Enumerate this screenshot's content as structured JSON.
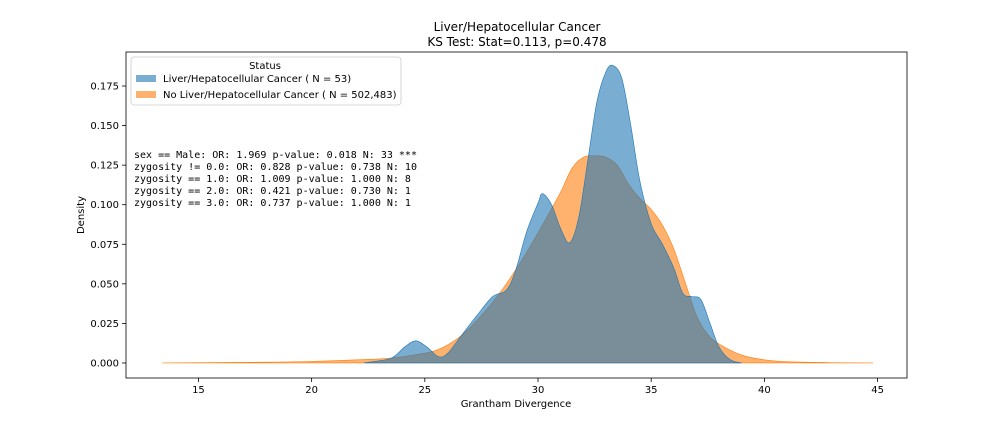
{
  "chart_data": {
    "type": "area",
    "title": "Liver/Hepatocellular Cancer",
    "subtitle": "KS Test: Stat=0.113, p=0.478",
    "xlabel": "Grantham Divergence",
    "ylabel": "Density",
    "xlim": [
      11.8,
      46.3
    ],
    "ylim": [
      -0.0095,
      0.1965
    ],
    "xticks": [
      15,
      20,
      25,
      30,
      35,
      40,
      45
    ],
    "yticks": [
      0.0,
      0.025,
      0.05,
      0.075,
      0.1,
      0.125,
      0.15,
      0.175
    ],
    "xtick_labels": [
      "15",
      "20",
      "25",
      "30",
      "35",
      "40",
      "45"
    ],
    "ytick_labels": [
      "0.000",
      "0.025",
      "0.050",
      "0.075",
      "0.100",
      "0.125",
      "0.150",
      "0.175"
    ],
    "grid": false,
    "legend": {
      "title": "Status",
      "placement": "top-left"
    },
    "series": [
      {
        "name": "No Liver/Hepatocellular Cancer ( N = 502,483)",
        "color": "#ff7f0e",
        "points": [
          [
            13.4,
            0.0
          ],
          [
            18.0,
            0.0005
          ],
          [
            20.0,
            0.001
          ],
          [
            22.0,
            0.002
          ],
          [
            23.5,
            0.003
          ],
          [
            24.5,
            0.005
          ],
          [
            25.5,
            0.008
          ],
          [
            26.5,
            0.016
          ],
          [
            27.5,
            0.03
          ],
          [
            28.5,
            0.048
          ],
          [
            29.5,
            0.07
          ],
          [
            30.5,
            0.095
          ],
          [
            31.0,
            0.108
          ],
          [
            31.5,
            0.123
          ],
          [
            32.0,
            0.13
          ],
          [
            32.5,
            0.131
          ],
          [
            33.0,
            0.13
          ],
          [
            33.5,
            0.125
          ],
          [
            34.0,
            0.113
          ],
          [
            34.5,
            0.104
          ],
          [
            35.0,
            0.097
          ],
          [
            35.5,
            0.087
          ],
          [
            36.0,
            0.072
          ],
          [
            36.5,
            0.051
          ],
          [
            37.0,
            0.03
          ],
          [
            37.5,
            0.018
          ],
          [
            38.0,
            0.012
          ],
          [
            39.0,
            0.005
          ],
          [
            40.0,
            0.002
          ],
          [
            41.0,
            0.0008
          ],
          [
            43.0,
            0.0002
          ],
          [
            44.8,
            0.0
          ]
        ]
      },
      {
        "name": "Liver/Hepatocellular Cancer ( N = 53)",
        "color": "#1f77b4",
        "points": [
          [
            22.3,
            0.0
          ],
          [
            23.5,
            0.003
          ],
          [
            24.1,
            0.01
          ],
          [
            24.6,
            0.014
          ],
          [
            25.1,
            0.01
          ],
          [
            25.6,
            0.004
          ],
          [
            26.0,
            0.006
          ],
          [
            26.6,
            0.017
          ],
          [
            27.3,
            0.03
          ],
          [
            28.0,
            0.042
          ],
          [
            28.6,
            0.046
          ],
          [
            29.0,
            0.058
          ],
          [
            29.5,
            0.083
          ],
          [
            30.0,
            0.101
          ],
          [
            30.2,
            0.107
          ],
          [
            30.6,
            0.1
          ],
          [
            31.0,
            0.085
          ],
          [
            31.4,
            0.076
          ],
          [
            31.8,
            0.092
          ],
          [
            32.2,
            0.128
          ],
          [
            32.6,
            0.165
          ],
          [
            33.0,
            0.184
          ],
          [
            33.3,
            0.188
          ],
          [
            33.7,
            0.18
          ],
          [
            34.1,
            0.15
          ],
          [
            34.5,
            0.115
          ],
          [
            35.0,
            0.088
          ],
          [
            35.5,
            0.075
          ],
          [
            36.0,
            0.06
          ],
          [
            36.4,
            0.044
          ],
          [
            36.8,
            0.042
          ],
          [
            37.2,
            0.04
          ],
          [
            37.6,
            0.025
          ],
          [
            38.0,
            0.01
          ],
          [
            38.5,
            0.002
          ],
          [
            39.0,
            0.0
          ]
        ]
      }
    ],
    "annotations": [
      "sex == Male: OR: 1.969 p-value: 0.018 N: 33 ***",
      "zygosity != 0.0: OR: 0.828 p-value: 0.738 N: 10",
      "zygosity == 1.0: OR: 1.009 p-value: 1.000 N: 8",
      "zygosity == 2.0: OR: 0.421 p-value: 0.730 N: 1",
      "zygosity == 3.0: OR: 0.737 p-value: 1.000 N: 1"
    ]
  }
}
